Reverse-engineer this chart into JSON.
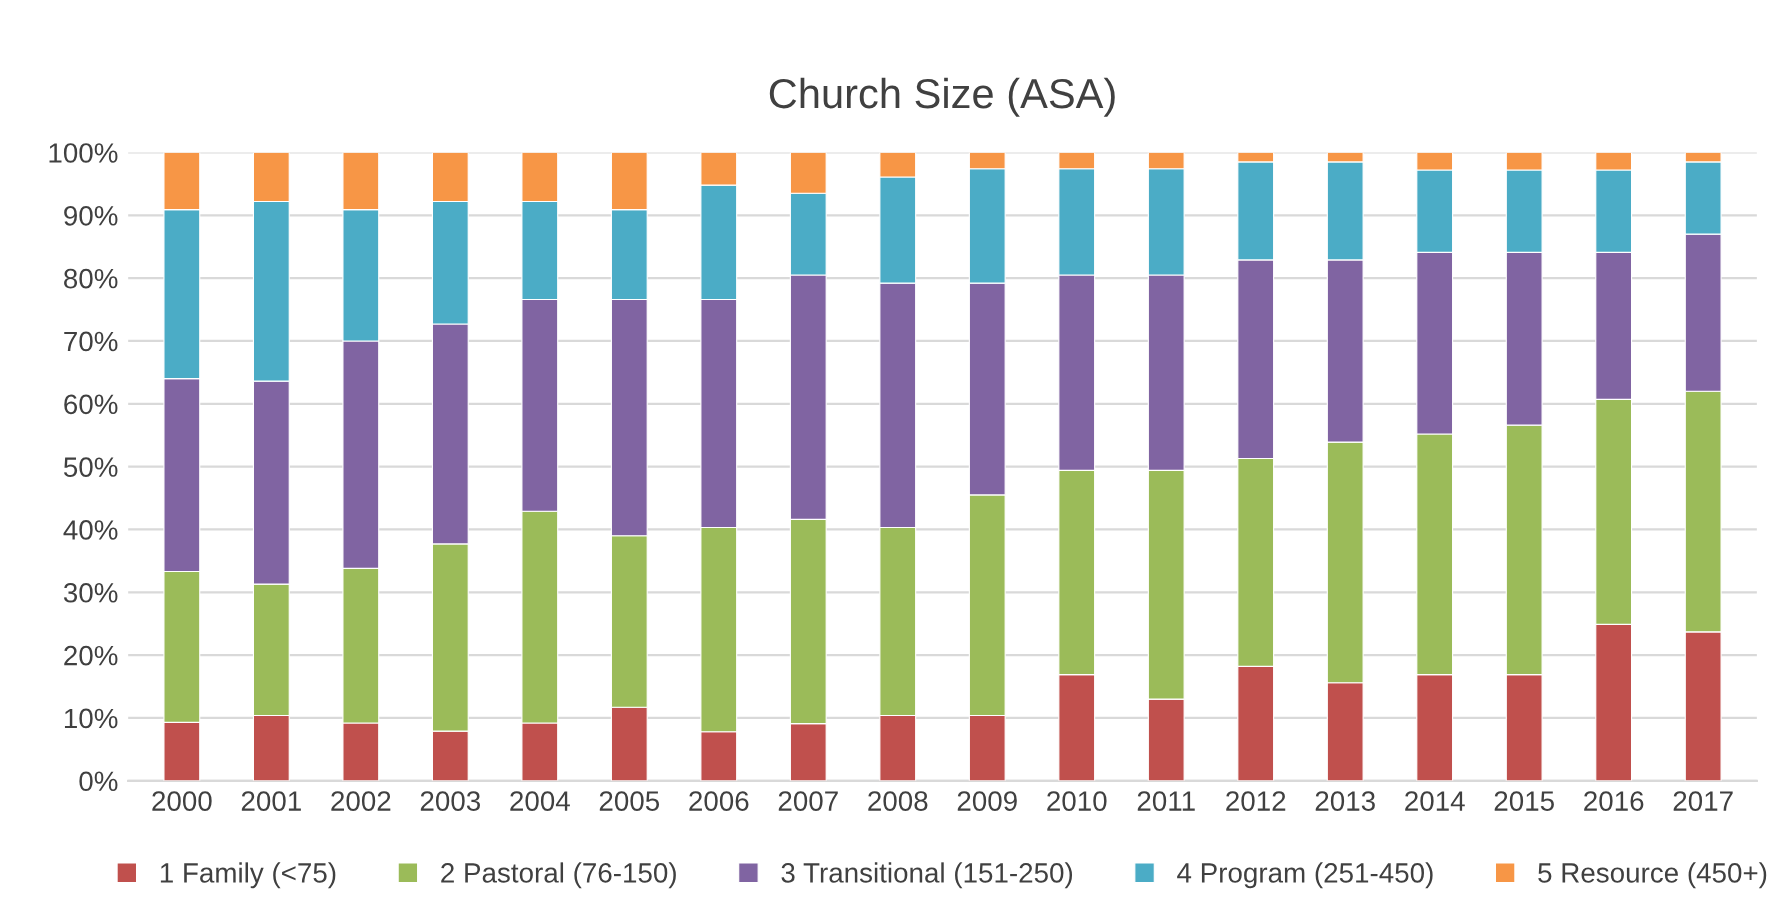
{
  "chart_data": {
    "type": "bar",
    "title": "Church Size (ASA)",
    "stacked": true,
    "categories": [
      "2000",
      "2001",
      "2002",
      "2003",
      "2004",
      "2005",
      "2006",
      "2007",
      "2008",
      "2009",
      "2010",
      "2011",
      "2012",
      "2013",
      "2014",
      "2015",
      "2016",
      "2017"
    ],
    "series": [
      {
        "name": "1 Family (<75)",
        "color": "#c0504d",
        "values": [
          9.3,
          10.4,
          9.2,
          7.9,
          9.2,
          11.7,
          7.8,
          9.1,
          10.4,
          10.4,
          16.9,
          13.0,
          18.2,
          15.6,
          16.9,
          16.9,
          24.9,
          23.7
        ]
      },
      {
        "name": "2 Pastoral (76-150)",
        "color": "#9bbb59",
        "values": [
          24.0,
          20.9,
          24.6,
          29.8,
          33.7,
          27.3,
          32.5,
          32.5,
          29.9,
          35.1,
          32.5,
          36.4,
          33.1,
          38.3,
          38.3,
          39.7,
          35.8,
          38.3
        ]
      },
      {
        "name": "3 Transitional (151-250)",
        "color": "#8064a2",
        "values": [
          30.7,
          32.3,
          36.2,
          35.0,
          33.7,
          37.6,
          36.3,
          38.9,
          38.9,
          33.7,
          31.1,
          31.1,
          31.6,
          29.0,
          28.9,
          27.5,
          23.4,
          25.0
        ]
      },
      {
        "name": "4 Program (251-450)",
        "color": "#4bacc6",
        "values": [
          26.9,
          28.6,
          20.9,
          19.5,
          15.6,
          14.3,
          18.2,
          13.0,
          16.9,
          18.2,
          16.9,
          16.9,
          15.6,
          15.6,
          13.1,
          13.1,
          13.1,
          11.5
        ]
      },
      {
        "name": "5 Resource (450+)",
        "color": "#f79646",
        "values": [
          9.1,
          7.8,
          9.1,
          7.8,
          7.8,
          9.1,
          5.2,
          6.5,
          3.9,
          2.6,
          2.6,
          2.6,
          1.5,
          1.5,
          2.8,
          2.8,
          2.8,
          1.5
        ]
      }
    ],
    "ylim": [
      0,
      100
    ],
    "yticks": [
      {
        "value": 0,
        "label": "0%"
      },
      {
        "value": 10,
        "label": "10%"
      },
      {
        "value": 20,
        "label": "20%"
      },
      {
        "value": 30,
        "label": "30%"
      },
      {
        "value": 40,
        "label": "40%"
      },
      {
        "value": 50,
        "label": "50%"
      },
      {
        "value": 60,
        "label": "60%"
      },
      {
        "value": 70,
        "label": "70%"
      },
      {
        "value": 80,
        "label": "80%"
      },
      {
        "value": 90,
        "label": "90%"
      },
      {
        "value": 100,
        "label": "100%"
      }
    ],
    "grid": "y",
    "legend": "bottom"
  }
}
